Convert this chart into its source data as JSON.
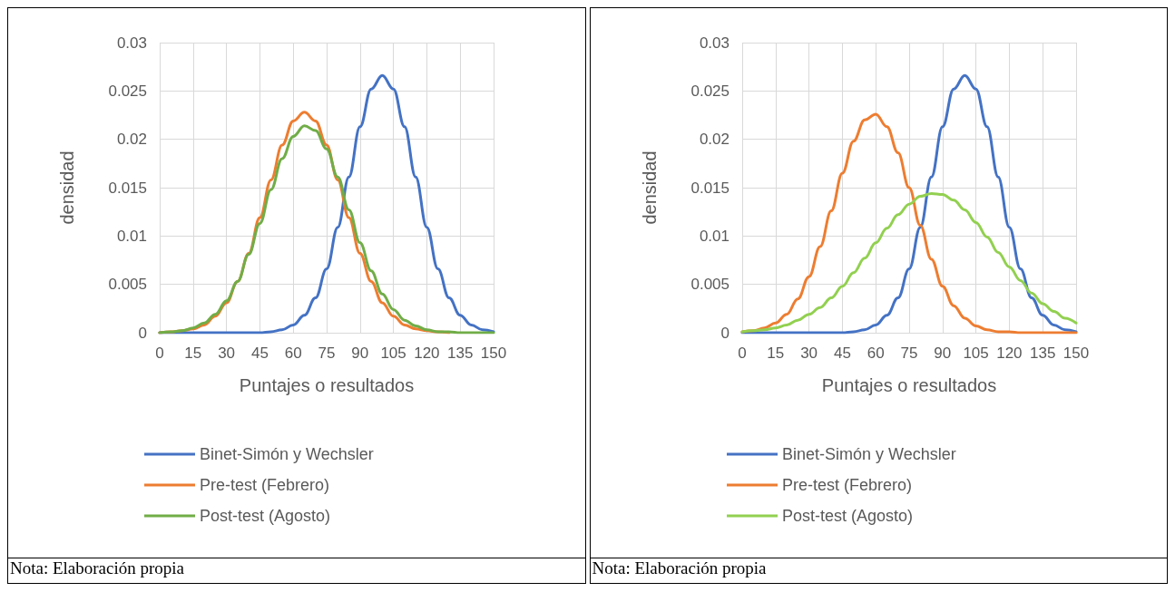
{
  "chart_data": [
    {
      "type": "line",
      "xlabel": "Puntajes o resultados",
      "ylabel": "densidad",
      "annotations": [
        "Nota: Elaboración propia"
      ],
      "grid": true,
      "legend": "bottom",
      "marker": "none",
      "line_style": "solid",
      "x": [
        0,
        5,
        10,
        15,
        20,
        25,
        30,
        35,
        40,
        45,
        50,
        55,
        60,
        65,
        70,
        75,
        80,
        85,
        90,
        95,
        100,
        105,
        110,
        115,
        120,
        125,
        130,
        135,
        140,
        145,
        150
      ],
      "xlim": [
        0,
        150
      ],
      "xticks": [
        0,
        15,
        30,
        45,
        60,
        75,
        90,
        105,
        120,
        135,
        150
      ],
      "ylim": [
        0,
        0.03
      ],
      "yticks": [
        0,
        0.005,
        0.01,
        0.015,
        0.02,
        0.025,
        0.03
      ],
      "series": [
        {
          "name": "Binet-Simón y Wechsler",
          "color": "#4472c4",
          "values": [
            0,
            0,
            0,
            0,
            0,
            0,
            0,
            0,
            0,
            0,
            0.0001,
            0.0003,
            0.0008,
            0.0018,
            0.0036,
            0.0066,
            0.0109,
            0.0161,
            0.0213,
            0.0252,
            0.0266,
            0.0252,
            0.0213,
            0.0161,
            0.0109,
            0.0066,
            0.0036,
            0.0018,
            0.0008,
            0.0003,
            0.0001
          ]
        },
        {
          "name": "Pre-test (Febrero)",
          "color": "#ed7d31",
          "values": [
            0,
            0.0001,
            0.0002,
            0.0004,
            0.0008,
            0.0017,
            0.0031,
            0.0053,
            0.0082,
            0.0119,
            0.0158,
            0.0194,
            0.0219,
            0.0228,
            0.0219,
            0.0194,
            0.0158,
            0.0119,
            0.0082,
            0.0053,
            0.0031,
            0.0017,
            0.0008,
            0.0004,
            0.0002,
            0.0001,
            0,
            null,
            null,
            null,
            null
          ]
        },
        {
          "name": "Post-test (Agosto)",
          "color": "#70ad47",
          "values": [
            0,
            0.0001,
            0.0002,
            0.0005,
            0.001,
            0.0019,
            0.0033,
            0.0053,
            0.0081,
            0.0113,
            0.0148,
            0.018,
            0.0203,
            0.0214,
            0.0209,
            0.019,
            0.0161,
            0.0127,
            0.0093,
            0.0064,
            0.004,
            0.0024,
            0.0013,
            0.0007,
            0.0003,
            0.0001,
            0.0001,
            0,
            0,
            0,
            0
          ]
        }
      ]
    },
    {
      "type": "line",
      "xlabel": "Puntajes o resultados",
      "ylabel": "densidad",
      "annotations": [
        "Nota: Elaboración propia"
      ],
      "grid": true,
      "legend": "bottom",
      "marker": "none",
      "line_style": "solid",
      "x": [
        0,
        5,
        10,
        15,
        20,
        25,
        30,
        35,
        40,
        45,
        50,
        55,
        60,
        65,
        70,
        75,
        80,
        85,
        90,
        95,
        100,
        105,
        110,
        115,
        120,
        125,
        130,
        135,
        140,
        145,
        150
      ],
      "xlim": [
        0,
        150
      ],
      "xticks": [
        0,
        15,
        30,
        45,
        60,
        75,
        90,
        105,
        120,
        135,
        150
      ],
      "ylim": [
        0,
        0.03
      ],
      "yticks": [
        0,
        0.005,
        0.01,
        0.015,
        0.02,
        0.025,
        0.03
      ],
      "series": [
        {
          "name": "Binet-Simón y Wechsler",
          "color": "#4472c4",
          "values": [
            0,
            0,
            0,
            0,
            0,
            0,
            0,
            0,
            0,
            0,
            0.0001,
            0.0003,
            0.0008,
            0.0018,
            0.0036,
            0.0066,
            0.0109,
            0.0161,
            0.0213,
            0.0252,
            0.0266,
            0.0252,
            0.0213,
            0.0161,
            0.0109,
            0.0066,
            0.0036,
            0.0018,
            0.0008,
            0.0003,
            0.0001
          ]
        },
        {
          "name": "Pre-test (Febrero)",
          "color": "#ed7d31",
          "values": [
            0.0001,
            0.0002,
            0.0005,
            0.001,
            0.0019,
            0.0035,
            0.0058,
            0.0089,
            0.0126,
            0.0165,
            0.0198,
            0.022,
            0.0226,
            0.0213,
            0.0186,
            0.015,
            0.0111,
            0.0076,
            0.0048,
            0.0028,
            0.0015,
            0.0007,
            0.0003,
            0.0001,
            0.0001,
            0,
            0,
            0,
            0,
            0,
            0
          ]
        },
        {
          "name": "Post-test (Agosto)",
          "color": "#92d050",
          "values": [
            0.0001,
            0.0002,
            0.0003,
            0.0005,
            0.0008,
            0.0013,
            0.0019,
            0.0026,
            0.0036,
            0.0048,
            0.0062,
            0.0077,
            0.0093,
            0.0108,
            0.0122,
            0.0133,
            0.0141,
            0.0144,
            0.0143,
            0.0137,
            0.0127,
            0.0114,
            0.0099,
            0.0083,
            0.0068,
            0.0054,
            0.0041,
            0.003,
            0.0022,
            0.0015,
            0.001
          ]
        }
      ]
    }
  ]
}
